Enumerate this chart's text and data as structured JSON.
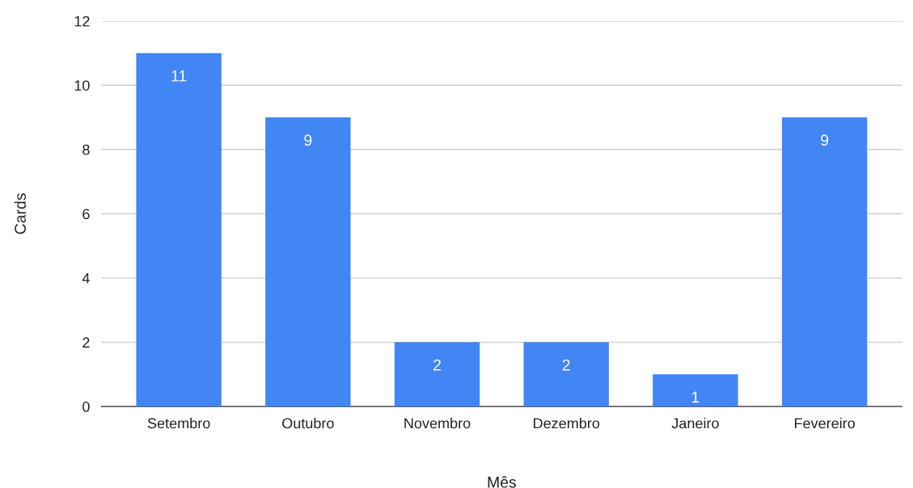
{
  "chart_data": {
    "type": "bar",
    "xlabel": "Mês",
    "ylabel": "Cards",
    "categories": [
      "Setembro",
      "Outubro",
      "Novembro",
      "Dezembro",
      "Janeiro",
      "Fevereiro"
    ],
    "values": [
      11,
      9,
      2,
      2,
      1,
      9
    ],
    "color": "#4285f4",
    "ylim": [
      0,
      12
    ],
    "yticks": [
      0,
      2,
      4,
      6,
      8,
      10,
      12
    ],
    "grid": "y",
    "data_labels": true
  }
}
